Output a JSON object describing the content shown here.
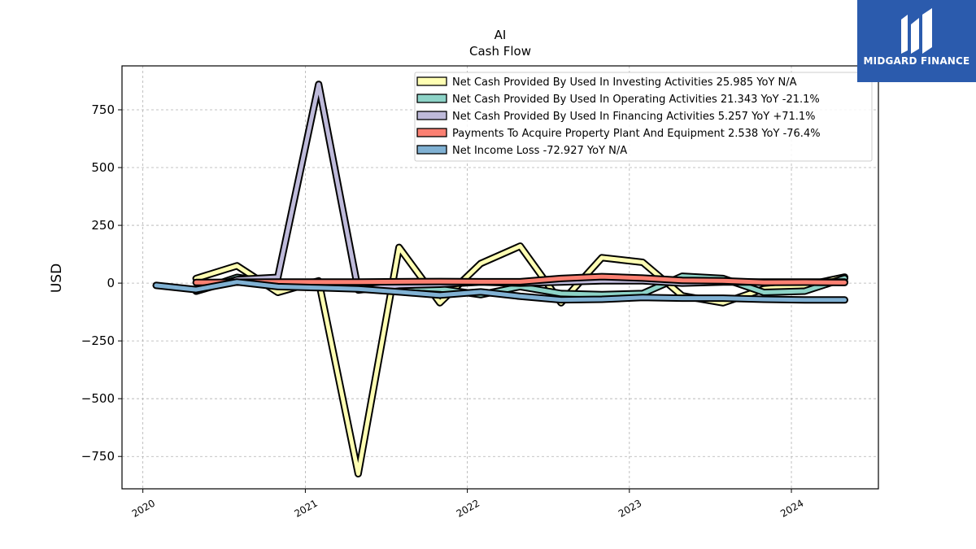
{
  "chart_data": {
    "type": "line",
    "title": "AI",
    "subtitle": "Cash Flow",
    "xlabel": "",
    "ylabel": "USD",
    "xlim": [
      "2019-11-15",
      "2024-07-15"
    ],
    "ylim": [
      -890,
      940
    ],
    "x_ticks": [
      "2020",
      "2021",
      "2022",
      "2023",
      "2024"
    ],
    "x_tick_dates": [
      "2020-01-01",
      "2021-01-01",
      "2022-01-01",
      "2023-01-01",
      "2024-01-01"
    ],
    "y_ticks": [
      -750,
      -500,
      -250,
      0,
      250,
      500,
      750
    ],
    "y_tick_labels": [
      "−750",
      "−500",
      "−250",
      "0",
      "250",
      "500",
      "750"
    ],
    "grid": true,
    "legend_position": "top-right",
    "series": [
      {
        "name": "Net Cash Provided By Used In Investing Activities",
        "legend_label": "Net Cash Provided By Used In Investing Activities  25.985 YoY N/A",
        "color": "#ffffb3",
        "points": [
          [
            "2020-04-30",
            20
          ],
          [
            "2020-07-31",
            75
          ],
          [
            "2020-10-31",
            -40
          ],
          [
            "2021-01-31",
            10
          ],
          [
            "2021-04-30",
            -825
          ],
          [
            "2021-07-31",
            155
          ],
          [
            "2021-10-31",
            -85
          ],
          [
            "2022-01-31",
            85
          ],
          [
            "2022-04-30",
            160
          ],
          [
            "2022-07-31",
            -85
          ],
          [
            "2022-10-31",
            110
          ],
          [
            "2023-01-31",
            90
          ],
          [
            "2023-04-30",
            -55
          ],
          [
            "2023-07-31",
            -85
          ],
          [
            "2023-10-31",
            -25
          ],
          [
            "2024-01-31",
            -10
          ],
          [
            "2024-04-30",
            26
          ]
        ]
      },
      {
        "name": "Net Cash Provided By Used In Operating Activities",
        "legend_label": "Net Cash Provided By Used In Operating Activities  21.343 YoY -21.1%",
        "color": "#8dd3c7",
        "points": [
          [
            "2020-04-30",
            -35
          ],
          [
            "2020-07-31",
            25
          ],
          [
            "2020-10-31",
            0
          ],
          [
            "2021-01-31",
            5
          ],
          [
            "2021-04-30",
            -20
          ],
          [
            "2021-07-31",
            -15
          ],
          [
            "2021-10-31",
            -25
          ],
          [
            "2022-01-31",
            -50
          ],
          [
            "2022-04-30",
            -15
          ],
          [
            "2022-07-31",
            -45
          ],
          [
            "2022-10-31",
            -50
          ],
          [
            "2023-01-31",
            -45
          ],
          [
            "2023-04-30",
            30
          ],
          [
            "2023-07-31",
            20
          ],
          [
            "2023-10-31",
            -40
          ],
          [
            "2024-01-31",
            -35
          ],
          [
            "2024-04-30",
            21
          ]
        ]
      },
      {
        "name": "Net Cash Provided By Used In Financing Activities",
        "legend_label": "Net Cash Provided By Used In Financing Activities  5.257 YoY +71.1%",
        "color": "#bebada",
        "points": [
          [
            "2020-04-30",
            -35
          ],
          [
            "2020-07-31",
            15
          ],
          [
            "2020-10-31",
            25
          ],
          [
            "2021-01-31",
            860
          ],
          [
            "2021-04-30",
            -30
          ],
          [
            "2021-07-31",
            -10
          ],
          [
            "2021-10-31",
            -5
          ],
          [
            "2022-01-31",
            5
          ],
          [
            "2022-04-30",
            0
          ],
          [
            "2022-07-31",
            5
          ],
          [
            "2022-10-31",
            10
          ],
          [
            "2023-01-31",
            10
          ],
          [
            "2023-04-30",
            0
          ],
          [
            "2023-07-31",
            5
          ],
          [
            "2023-10-31",
            5
          ],
          [
            "2024-01-31",
            5
          ],
          [
            "2024-04-30",
            5
          ]
        ]
      },
      {
        "name": "Payments To Acquire Property Plant And Equipment",
        "legend_label": "Payments To Acquire Property Plant And Equipment  2.538 YoY -76.4%",
        "color": "#fb8072",
        "points": [
          [
            "2020-04-30",
            3
          ],
          [
            "2020-07-31",
            4
          ],
          [
            "2020-10-31",
            5
          ],
          [
            "2021-01-31",
            5
          ],
          [
            "2021-04-30",
            5
          ],
          [
            "2021-07-31",
            6
          ],
          [
            "2021-10-31",
            7
          ],
          [
            "2022-01-31",
            6
          ],
          [
            "2022-04-30",
            6
          ],
          [
            "2022-07-31",
            20
          ],
          [
            "2022-10-31",
            28
          ],
          [
            "2023-01-31",
            22
          ],
          [
            "2023-04-30",
            12
          ],
          [
            "2023-07-31",
            10
          ],
          [
            "2023-10-31",
            3
          ],
          [
            "2024-01-31",
            4
          ],
          [
            "2024-04-30",
            2.5
          ]
        ]
      },
      {
        "name": "Net Income Loss",
        "legend_label": "Net Income Loss  -72.927 YoY N/A",
        "color": "#80b1d3",
        "points": [
          [
            "2020-01-31",
            -10
          ],
          [
            "2020-04-30",
            -28
          ],
          [
            "2020-07-31",
            5
          ],
          [
            "2020-10-31",
            -15
          ],
          [
            "2021-01-31",
            -20
          ],
          [
            "2021-04-30",
            -25
          ],
          [
            "2021-07-31",
            -38
          ],
          [
            "2021-10-31",
            -52
          ],
          [
            "2022-01-31",
            -38
          ],
          [
            "2022-04-30",
            -57
          ],
          [
            "2022-07-31",
            -72
          ],
          [
            "2022-10-31",
            -70
          ],
          [
            "2023-01-31",
            -62
          ],
          [
            "2023-04-30",
            -65
          ],
          [
            "2023-07-31",
            -65
          ],
          [
            "2023-10-31",
            -70
          ],
          [
            "2024-01-31",
            -73
          ],
          [
            "2024-04-30",
            -73
          ]
        ]
      }
    ]
  },
  "logo": {
    "text": "MIDGARD FINANCE"
  }
}
